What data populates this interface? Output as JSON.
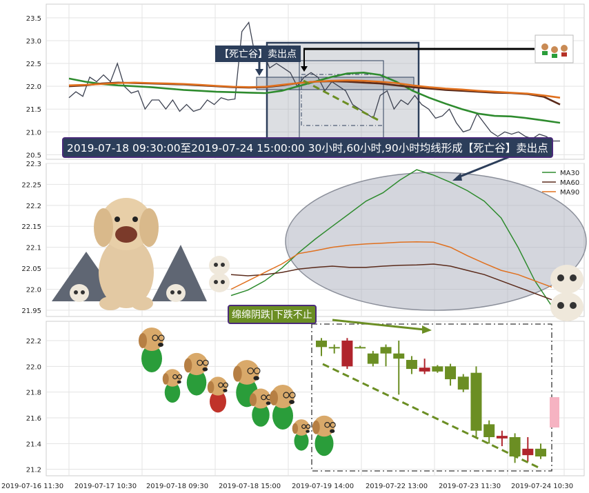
{
  "chart_data": [
    {
      "type": "line",
      "panel": "price-overview",
      "yticks": [
        20.5,
        21.0,
        21.5,
        22.0,
        22.5,
        23.0,
        23.5
      ],
      "ylim": [
        20.4,
        23.8
      ],
      "grid": true,
      "series": [
        {
          "key": "price",
          "color": "#3c4150",
          "values": [
            21.75,
            21.88,
            21.78,
            22.2,
            22.1,
            22.25,
            22.1,
            22.5,
            22.0,
            21.85,
            21.9,
            21.5,
            21.7,
            21.7,
            21.5,
            21.7,
            21.45,
            21.6,
            21.45,
            21.5,
            21.7,
            21.6,
            21.75,
            21.7,
            21.72,
            23.2,
            23.4,
            22.6,
            22.8,
            22.4,
            22.5,
            22.4,
            22.3,
            22.0,
            22.2,
            22.3,
            22.2,
            21.9,
            22.1,
            22.0,
            21.9,
            21.6,
            21.5,
            21.4,
            21.3,
            21.8,
            21.9,
            21.5,
            21.7,
            21.6,
            21.8,
            21.6,
            21.5,
            21.3,
            21.35,
            21.5,
            21.2,
            21.0,
            21.05,
            21.4,
            21.2,
            21.0,
            20.9,
            21.0,
            20.95,
            21.0,
            20.9,
            20.85,
            20.95,
            20.9,
            20.8,
            20.8
          ]
        },
        {
          "key": "ma30",
          "color": "#2e8b2e",
          "values": [
            22.17,
            22.1,
            22.05,
            22.02,
            22.0,
            21.98,
            21.95,
            21.92,
            21.9,
            21.88,
            21.87,
            21.86,
            21.85,
            21.9,
            22.0,
            22.1,
            22.2,
            22.28,
            22.3,
            22.25,
            22.1,
            21.9,
            21.75,
            21.62,
            21.5,
            21.4,
            21.35,
            21.34,
            21.3,
            21.25,
            21.2
          ]
        },
        {
          "key": "ma60",
          "color": "#5a2a1a",
          "values": [
            22.0,
            22.02,
            22.06,
            22.08,
            22.07,
            22.06,
            22.05,
            22.04,
            22.02,
            22.0,
            21.98,
            21.97,
            21.98,
            22.02,
            22.07,
            22.1,
            22.11,
            22.1,
            22.08,
            22.06,
            22.02,
            21.98,
            21.95,
            21.92,
            21.9,
            21.88,
            21.86,
            21.85,
            21.83,
            21.77,
            21.6
          ]
        },
        {
          "key": "ma90",
          "color": "#e0701e",
          "values": [
            22.02,
            22.03,
            22.05,
            22.07,
            22.08,
            22.07,
            22.06,
            22.05,
            22.03,
            22.01,
            21.99,
            21.98,
            21.99,
            22.03,
            22.07,
            22.1,
            22.12,
            22.13,
            22.12,
            22.1,
            22.07,
            22.02,
            21.98,
            21.95,
            21.93,
            21.9,
            21.88,
            21.86,
            21.84,
            21.8,
            21.75
          ]
        }
      ]
    },
    {
      "type": "line",
      "panel": "moving-average-zoom",
      "yticks": [
        21.95,
        22.0,
        22.05,
        22.1,
        22.15,
        22.2,
        22.25,
        22.3
      ],
      "ylim": [
        21.935,
        22.3
      ],
      "grid": true,
      "legend": {
        "placement": "top-right",
        "entries": [
          "MA30",
          "MA60",
          "MA90"
        ]
      },
      "series": [
        {
          "name": "MA30",
          "color": "#2e8b2e",
          "values": [
            21.985,
            21.998,
            22.02,
            22.05,
            22.087,
            22.12,
            22.15,
            22.18,
            22.21,
            22.23,
            22.26,
            22.285,
            22.272,
            22.255,
            22.235,
            22.21,
            22.17,
            22.1,
            22.02,
            21.96
          ]
        },
        {
          "name": "MA60",
          "color": "#5a2a1a",
          "values": [
            22.035,
            22.032,
            22.035,
            22.04,
            22.048,
            22.052,
            22.055,
            22.052,
            22.052,
            22.055,
            22.057,
            22.058,
            22.06,
            22.055,
            22.045,
            22.035,
            22.02,
            22.005,
            21.99,
            21.975
          ]
        },
        {
          "name": "MA90",
          "color": "#e0701e",
          "values": [
            22.0,
            22.02,
            22.04,
            22.06,
            22.085,
            22.092,
            22.1,
            22.105,
            22.108,
            22.11,
            22.112,
            22.113,
            22.112,
            22.1,
            22.08,
            22.062,
            22.045,
            22.035,
            22.02,
            22.005
          ]
        }
      ]
    },
    {
      "type": "candlestick",
      "panel": "candles",
      "yticks": [
        21.2,
        21.4,
        21.6,
        21.8,
        22.0,
        22.2
      ],
      "ylim": [
        21.15,
        22.35
      ],
      "grid": true,
      "candles": [
        {
          "o": 22.2,
          "c": 22.15,
          "h": 22.22,
          "l": 22.08
        },
        {
          "o": 22.15,
          "c": 22.14,
          "h": 22.17,
          "l": 22.1
        },
        {
          "o": 22.2,
          "c": 22.0,
          "h": 22.22,
          "l": 21.98
        },
        {
          "o": 22.15,
          "c": 22.15,
          "h": 22.16,
          "l": 22.14
        },
        {
          "o": 22.1,
          "c": 22.02,
          "h": 22.12,
          "l": 22.0
        },
        {
          "o": 22.15,
          "c": 22.1,
          "h": 22.17,
          "l": 22.0
        },
        {
          "o": 22.1,
          "c": 22.06,
          "h": 22.2,
          "l": 21.78
        },
        {
          "o": 22.05,
          "c": 21.98,
          "h": 22.08,
          "l": 21.94
        },
        {
          "o": 21.99,
          "c": 21.96,
          "h": 22.06,
          "l": 21.94
        },
        {
          "o": 21.96,
          "c": 22.0,
          "h": 22.01,
          "l": 21.95
        },
        {
          "o": 22.0,
          "c": 21.9,
          "h": 22.02,
          "l": 21.85
        },
        {
          "o": 21.92,
          "c": 21.82,
          "h": 21.94,
          "l": 21.8
        },
        {
          "o": 21.95,
          "c": 21.5,
          "h": 22.0,
          "l": 21.45
        },
        {
          "o": 21.55,
          "c": 21.45,
          "h": 21.58,
          "l": 21.4
        },
        {
          "o": 21.46,
          "c": 21.44,
          "h": 21.5,
          "l": 21.38
        },
        {
          "o": 21.45,
          "c": 21.3,
          "h": 21.48,
          "l": 21.25
        },
        {
          "o": 21.36,
          "c": 21.31,
          "h": 21.45,
          "l": 21.26
        },
        {
          "o": 21.36,
          "c": 21.3,
          "h": 21.4,
          "l": 21.28
        }
      ]
    }
  ],
  "xaxis": {
    "labels": [
      "2019-07-16 11:30",
      "2019-07-17 10:30",
      "2019-07-18 09:30",
      "2019-07-18 15:00",
      "2019-07-19 14:00",
      "2019-07-22 13:00",
      "2019-07-23 11:30",
      "2019-07-24 10:30"
    ]
  },
  "annotations": {
    "signal": "【死亡谷】卖出点",
    "banner": "2019-07-18 09:30:00至2019-07-24 15:00:00 30小时,60小时,90小时均线形成【死亡谷】卖出点",
    "decline": "绵绵阴跌|下跌不止"
  },
  "colors": {
    "up": "#6b8e23",
    "down": "#b0242c",
    "dashed_trend": "#6b8e23",
    "banner_bg": "#2c3e5a",
    "banner_border": "#4a2a7a",
    "decline_bg": "#6b8e23",
    "ellipse": "#b8bcc6"
  },
  "decorations": [
    "poodle-sticker",
    "mountain-icon",
    "skull-icon",
    "puppy-backpack-stickers"
  ]
}
